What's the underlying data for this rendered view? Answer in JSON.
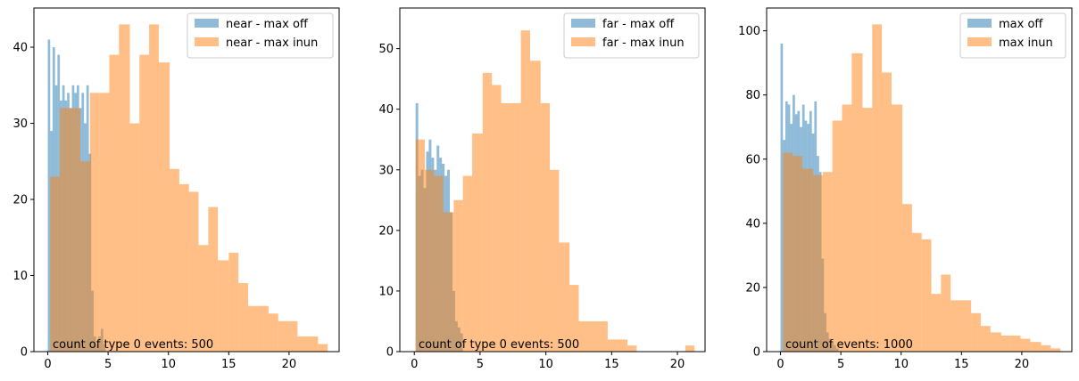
{
  "chart_data": [
    {
      "type": "bar",
      "title": "",
      "xlabel": "",
      "ylabel": "",
      "xlim": [
        -1.15,
        24.15
      ],
      "ylim": [
        0,
        45.15
      ],
      "xticks": [
        0,
        5,
        10,
        15,
        20
      ],
      "yticks": [
        0,
        10,
        20,
        30,
        40
      ],
      "legend_position": "top-right",
      "annotation": "count of type 0 events: 500",
      "series": [
        {
          "name": "near - max off",
          "color": "#1f77b4",
          "alpha": 0.5,
          "bins": [
            {
              "x0": 0.0,
              "x1": 0.2,
              "count": 41
            },
            {
              "x0": 0.2,
              "x1": 0.4,
              "count": 29
            },
            {
              "x0": 0.4,
              "x1": 0.6,
              "count": 40
            },
            {
              "x0": 0.6,
              "x1": 0.8,
              "count": 35
            },
            {
              "x0": 0.8,
              "x1": 1.0,
              "count": 39
            },
            {
              "x0": 1.0,
              "x1": 1.2,
              "count": 33
            },
            {
              "x0": 1.2,
              "x1": 1.4,
              "count": 35
            },
            {
              "x0": 1.4,
              "x1": 1.6,
              "count": 33
            },
            {
              "x0": 1.6,
              "x1": 1.8,
              "count": 34
            },
            {
              "x0": 1.8,
              "x1": 2.0,
              "count": 32
            },
            {
              "x0": 2.0,
              "x1": 2.2,
              "count": 35
            },
            {
              "x0": 2.2,
              "x1": 2.4,
              "count": 34
            },
            {
              "x0": 2.4,
              "x1": 2.6,
              "count": 35
            },
            {
              "x0": 2.6,
              "x1": 2.8,
              "count": 32
            },
            {
              "x0": 2.8,
              "x1": 3.0,
              "count": 34
            },
            {
              "x0": 3.0,
              "x1": 3.2,
              "count": 30
            },
            {
              "x0": 3.2,
              "x1": 3.4,
              "count": 35
            },
            {
              "x0": 3.4,
              "x1": 3.6,
              "count": 26
            },
            {
              "x0": 3.6,
              "x1": 3.8,
              "count": 8
            },
            {
              "x0": 3.8,
              "x1": 4.0,
              "count": 2
            },
            {
              "x0": 4.0,
              "x1": 4.2,
              "count": 1
            },
            {
              "x0": 4.2,
              "x1": 4.4,
              "count": 2
            },
            {
              "x0": 4.4,
              "x1": 4.6,
              "count": 3
            },
            {
              "x0": 4.6,
              "x1": 4.8,
              "count": 1
            }
          ]
        },
        {
          "name": "near - max inun",
          "color": "#ff7f0e",
          "alpha": 0.5,
          "bins": [
            {
              "x0": 0.2,
              "x1": 1.0,
              "count": 23
            },
            {
              "x0": 1.0,
              "x1": 1.8,
              "count": 32
            },
            {
              "x0": 1.8,
              "x1": 2.7,
              "count": 32
            },
            {
              "x0": 2.7,
              "x1": 3.5,
              "count": 25
            },
            {
              "x0": 3.5,
              "x1": 4.3,
              "count": 34
            },
            {
              "x0": 4.3,
              "x1": 5.1,
              "count": 34
            },
            {
              "x0": 5.1,
              "x1": 5.9,
              "count": 39
            },
            {
              "x0": 5.9,
              "x1": 6.8,
              "count": 43
            },
            {
              "x0": 6.8,
              "x1": 7.6,
              "count": 30
            },
            {
              "x0": 7.6,
              "x1": 8.4,
              "count": 39
            },
            {
              "x0": 8.4,
              "x1": 9.2,
              "count": 43
            },
            {
              "x0": 9.2,
              "x1": 10.1,
              "count": 38
            },
            {
              "x0": 10.1,
              "x1": 10.9,
              "count": 24
            },
            {
              "x0": 10.9,
              "x1": 11.7,
              "count": 22
            },
            {
              "x0": 11.7,
              "x1": 12.5,
              "count": 21
            },
            {
              "x0": 12.5,
              "x1": 13.3,
              "count": 14
            },
            {
              "x0": 13.3,
              "x1": 14.1,
              "count": 19
            },
            {
              "x0": 14.1,
              "x1": 15.0,
              "count": 12
            },
            {
              "x0": 15.0,
              "x1": 15.8,
              "count": 13
            },
            {
              "x0": 15.8,
              "x1": 16.6,
              "count": 9
            },
            {
              "x0": 16.6,
              "x1": 17.4,
              "count": 6
            },
            {
              "x0": 17.4,
              "x1": 18.3,
              "count": 6
            },
            {
              "x0": 18.3,
              "x1": 19.1,
              "count": 5
            },
            {
              "x0": 19.1,
              "x1": 19.9,
              "count": 4
            },
            {
              "x0": 19.9,
              "x1": 20.7,
              "count": 4
            },
            {
              "x0": 20.7,
              "x1": 21.6,
              "count": 2
            },
            {
              "x0": 21.6,
              "x1": 22.4,
              "count": 2
            },
            {
              "x0": 22.4,
              "x1": 23.2,
              "count": 1
            }
          ]
        }
      ]
    },
    {
      "type": "bar",
      "title": "",
      "xlabel": "",
      "ylabel": "",
      "xlim": [
        -1.1,
        22.1
      ],
      "ylim": [
        0,
        56.7
      ],
      "xticks": [
        0,
        5,
        10,
        15,
        20
      ],
      "yticks": [
        0,
        10,
        20,
        30,
        40,
        50
      ],
      "legend_position": "top-right",
      "annotation": "count of type 0 events: 500",
      "series": [
        {
          "name": "far - max off",
          "color": "#1f77b4",
          "alpha": 0.5,
          "bins": [
            {
              "x0": 0.1,
              "x1": 0.3,
              "count": 41
            },
            {
              "x0": 0.3,
              "x1": 0.5,
              "count": 29
            },
            {
              "x0": 0.5,
              "x1": 0.7,
              "count": 30
            },
            {
              "x0": 0.7,
              "x1": 0.9,
              "count": 27
            },
            {
              "x0": 0.9,
              "x1": 1.1,
              "count": 33
            },
            {
              "x0": 1.1,
              "x1": 1.3,
              "count": 35
            },
            {
              "x0": 1.3,
              "x1": 1.5,
              "count": 32
            },
            {
              "x0": 1.5,
              "x1": 1.7,
              "count": 30
            },
            {
              "x0": 1.7,
              "x1": 1.9,
              "count": 34
            },
            {
              "x0": 1.9,
              "x1": 2.1,
              "count": 32
            },
            {
              "x0": 2.1,
              "x1": 2.3,
              "count": 31
            },
            {
              "x0": 2.3,
              "x1": 2.5,
              "count": 29
            },
            {
              "x0": 2.5,
              "x1": 2.7,
              "count": 30
            },
            {
              "x0": 2.7,
              "x1": 2.9,
              "count": 23
            },
            {
              "x0": 2.9,
              "x1": 3.1,
              "count": 10
            },
            {
              "x0": 3.1,
              "x1": 3.3,
              "count": 5
            },
            {
              "x0": 3.3,
              "x1": 3.5,
              "count": 4
            },
            {
              "x0": 3.5,
              "x1": 3.7,
              "count": 3
            }
          ]
        },
        {
          "name": "far - max inun",
          "color": "#ff7f0e",
          "alpha": 0.5,
          "bins": [
            {
              "x0": 0.1,
              "x1": 0.8,
              "count": 35
            },
            {
              "x0": 0.8,
              "x1": 1.5,
              "count": 30
            },
            {
              "x0": 1.5,
              "x1": 2.2,
              "count": 29
            },
            {
              "x0": 2.2,
              "x1": 3.0,
              "count": 23
            },
            {
              "x0": 3.0,
              "x1": 3.7,
              "count": 25
            },
            {
              "x0": 3.7,
              "x1": 4.4,
              "count": 29
            },
            {
              "x0": 4.4,
              "x1": 5.2,
              "count": 36
            },
            {
              "x0": 5.2,
              "x1": 5.9,
              "count": 46
            },
            {
              "x0": 5.9,
              "x1": 6.6,
              "count": 44
            },
            {
              "x0": 6.6,
              "x1": 7.4,
              "count": 41
            },
            {
              "x0": 7.4,
              "x1": 8.1,
              "count": 41
            },
            {
              "x0": 8.1,
              "x1": 8.8,
              "count": 53
            },
            {
              "x0": 8.8,
              "x1": 9.6,
              "count": 48
            },
            {
              "x0": 9.6,
              "x1": 10.3,
              "count": 41
            },
            {
              "x0": 10.3,
              "x1": 11.0,
              "count": 30
            },
            {
              "x0": 11.0,
              "x1": 11.8,
              "count": 18
            },
            {
              "x0": 11.8,
              "x1": 12.5,
              "count": 11
            },
            {
              "x0": 12.5,
              "x1": 13.2,
              "count": 5
            },
            {
              "x0": 13.2,
              "x1": 14.0,
              "count": 5
            },
            {
              "x0": 14.0,
              "x1": 14.7,
              "count": 5
            },
            {
              "x0": 14.7,
              "x1": 15.4,
              "count": 2
            },
            {
              "x0": 15.4,
              "x1": 16.2,
              "count": 2
            },
            {
              "x0": 16.2,
              "x1": 16.9,
              "count": 1
            },
            {
              "x0": 20.6,
              "x1": 21.3,
              "count": 1
            }
          ]
        }
      ]
    },
    {
      "type": "bar",
      "title": "",
      "xlabel": "",
      "ylabel": "",
      "xlim": [
        -1.15,
        24.15
      ],
      "ylim": [
        0,
        107.1
      ],
      "xticks": [
        0,
        5,
        10,
        15,
        20
      ],
      "yticks": [
        0,
        20,
        40,
        60,
        80,
        100
      ],
      "legend_position": "top-right",
      "annotation": "count of events: 1000",
      "series": [
        {
          "name": "max off",
          "color": "#1f77b4",
          "alpha": 0.5,
          "bins": [
            {
              "x0": 0.0,
              "x1": 0.2,
              "count": 96
            },
            {
              "x0": 0.2,
              "x1": 0.4,
              "count": 66
            },
            {
              "x0": 0.4,
              "x1": 0.6,
              "count": 78
            },
            {
              "x0": 0.6,
              "x1": 0.8,
              "count": 77
            },
            {
              "x0": 0.8,
              "x1": 1.0,
              "count": 71
            },
            {
              "x0": 1.0,
              "x1": 1.2,
              "count": 80
            },
            {
              "x0": 1.2,
              "x1": 1.4,
              "count": 74
            },
            {
              "x0": 1.4,
              "x1": 1.6,
              "count": 75
            },
            {
              "x0": 1.6,
              "x1": 1.8,
              "count": 70
            },
            {
              "x0": 1.8,
              "x1": 2.0,
              "count": 77
            },
            {
              "x0": 2.0,
              "x1": 2.2,
              "count": 72
            },
            {
              "x0": 2.2,
              "x1": 2.4,
              "count": 71
            },
            {
              "x0": 2.4,
              "x1": 2.6,
              "count": 75
            },
            {
              "x0": 2.6,
              "x1": 2.8,
              "count": 68
            },
            {
              "x0": 2.8,
              "x1": 3.0,
              "count": 78
            },
            {
              "x0": 3.0,
              "x1": 3.2,
              "count": 61
            },
            {
              "x0": 3.2,
              "x1": 3.4,
              "count": 56
            },
            {
              "x0": 3.4,
              "x1": 3.6,
              "count": 29
            },
            {
              "x0": 3.6,
              "x1": 3.8,
              "count": 12
            },
            {
              "x0": 3.8,
              "x1": 4.0,
              "count": 6
            },
            {
              "x0": 4.0,
              "x1": 4.2,
              "count": 4
            },
            {
              "x0": 4.2,
              "x1": 4.4,
              "count": 3
            },
            {
              "x0": 4.4,
              "x1": 4.6,
              "count": 2
            },
            {
              "x0": 4.6,
              "x1": 4.8,
              "count": 1
            }
          ]
        },
        {
          "name": "max inun",
          "color": "#ff7f0e",
          "alpha": 0.5,
          "bins": [
            {
              "x0": 0.2,
              "x1": 1.0,
              "count": 62
            },
            {
              "x0": 1.0,
              "x1": 1.8,
              "count": 61
            },
            {
              "x0": 1.8,
              "x1": 2.7,
              "count": 57
            },
            {
              "x0": 2.7,
              "x1": 3.5,
              "count": 55
            },
            {
              "x0": 3.5,
              "x1": 4.3,
              "count": 56
            },
            {
              "x0": 4.3,
              "x1": 5.1,
              "count": 72
            },
            {
              "x0": 5.1,
              "x1": 5.9,
              "count": 77
            },
            {
              "x0": 5.9,
              "x1": 6.8,
              "count": 93
            },
            {
              "x0": 6.8,
              "x1": 7.6,
              "count": 76
            },
            {
              "x0": 7.6,
              "x1": 8.4,
              "count": 102
            },
            {
              "x0": 8.4,
              "x1": 9.2,
              "count": 87
            },
            {
              "x0": 9.2,
              "x1": 10.1,
              "count": 77
            },
            {
              "x0": 10.1,
              "x1": 10.9,
              "count": 46
            },
            {
              "x0": 10.9,
              "x1": 11.7,
              "count": 37
            },
            {
              "x0": 11.7,
              "x1": 12.5,
              "count": 35
            },
            {
              "x0": 12.5,
              "x1": 13.3,
              "count": 18
            },
            {
              "x0": 13.3,
              "x1": 14.1,
              "count": 24
            },
            {
              "x0": 14.1,
              "x1": 15.0,
              "count": 16
            },
            {
              "x0": 15.0,
              "x1": 15.8,
              "count": 16
            },
            {
              "x0": 15.8,
              "x1": 16.6,
              "count": 12
            },
            {
              "x0": 16.6,
              "x1": 17.4,
              "count": 8
            },
            {
              "x0": 17.4,
              "x1": 18.3,
              "count": 6
            },
            {
              "x0": 18.3,
              "x1": 19.1,
              "count": 5
            },
            {
              "x0": 19.1,
              "x1": 19.9,
              "count": 5
            },
            {
              "x0": 19.9,
              "x1": 20.7,
              "count": 4
            },
            {
              "x0": 20.7,
              "x1": 21.6,
              "count": 3
            },
            {
              "x0": 21.6,
              "x1": 22.4,
              "count": 2
            },
            {
              "x0": 22.4,
              "x1": 23.2,
              "count": 1
            }
          ]
        }
      ]
    }
  ]
}
